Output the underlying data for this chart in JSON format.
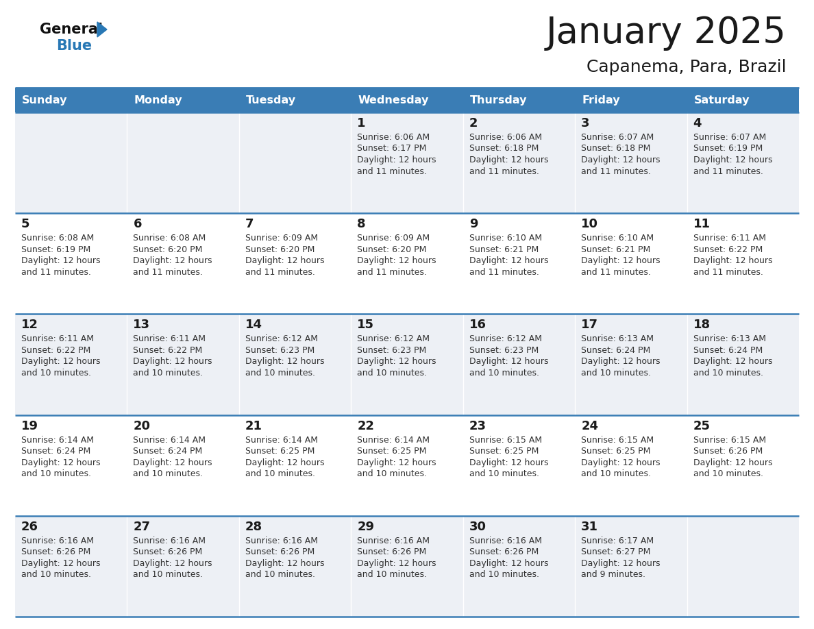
{
  "title": "January 2025",
  "subtitle": "Capanema, Para, Brazil",
  "days_of_week": [
    "Sunday",
    "Monday",
    "Tuesday",
    "Wednesday",
    "Thursday",
    "Friday",
    "Saturday"
  ],
  "header_bg": "#3a7db5",
  "header_text": "#ffffff",
  "cell_bg_light": "#edf0f5",
  "cell_bg_white": "#ffffff",
  "line_color": "#3a7db5",
  "title_color": "#1a1a1a",
  "text_color": "#333333",
  "day_num_color": "#1a1a1a",
  "logo_general_color": "#111111",
  "logo_blue_color": "#2878b5",
  "weeks": [
    {
      "days": [
        {
          "day": null,
          "sunrise": null,
          "sunset": null,
          "daylight_suffix": null
        },
        {
          "day": null,
          "sunrise": null,
          "sunset": null,
          "daylight_suffix": null
        },
        {
          "day": null,
          "sunrise": null,
          "sunset": null,
          "daylight_suffix": null
        },
        {
          "day": 1,
          "sunrise": "6:06 AM",
          "sunset": "6:17 PM",
          "daylight_suffix": "11 minutes."
        },
        {
          "day": 2,
          "sunrise": "6:06 AM",
          "sunset": "6:18 PM",
          "daylight_suffix": "11 minutes."
        },
        {
          "day": 3,
          "sunrise": "6:07 AM",
          "sunset": "6:18 PM",
          "daylight_suffix": "11 minutes."
        },
        {
          "day": 4,
          "sunrise": "6:07 AM",
          "sunset": "6:19 PM",
          "daylight_suffix": "11 minutes."
        }
      ]
    },
    {
      "days": [
        {
          "day": 5,
          "sunrise": "6:08 AM",
          "sunset": "6:19 PM",
          "daylight_suffix": "11 minutes."
        },
        {
          "day": 6,
          "sunrise": "6:08 AM",
          "sunset": "6:20 PM",
          "daylight_suffix": "11 minutes."
        },
        {
          "day": 7,
          "sunrise": "6:09 AM",
          "sunset": "6:20 PM",
          "daylight_suffix": "11 minutes."
        },
        {
          "day": 8,
          "sunrise": "6:09 AM",
          "sunset": "6:20 PM",
          "daylight_suffix": "11 minutes."
        },
        {
          "day": 9,
          "sunrise": "6:10 AM",
          "sunset": "6:21 PM",
          "daylight_suffix": "11 minutes."
        },
        {
          "day": 10,
          "sunrise": "6:10 AM",
          "sunset": "6:21 PM",
          "daylight_suffix": "11 minutes."
        },
        {
          "day": 11,
          "sunrise": "6:11 AM",
          "sunset": "6:22 PM",
          "daylight_suffix": "11 minutes."
        }
      ]
    },
    {
      "days": [
        {
          "day": 12,
          "sunrise": "6:11 AM",
          "sunset": "6:22 PM",
          "daylight_suffix": "10 minutes."
        },
        {
          "day": 13,
          "sunrise": "6:11 AM",
          "sunset": "6:22 PM",
          "daylight_suffix": "10 minutes."
        },
        {
          "day": 14,
          "sunrise": "6:12 AM",
          "sunset": "6:23 PM",
          "daylight_suffix": "10 minutes."
        },
        {
          "day": 15,
          "sunrise": "6:12 AM",
          "sunset": "6:23 PM",
          "daylight_suffix": "10 minutes."
        },
        {
          "day": 16,
          "sunrise": "6:12 AM",
          "sunset": "6:23 PM",
          "daylight_suffix": "10 minutes."
        },
        {
          "day": 17,
          "sunrise": "6:13 AM",
          "sunset": "6:24 PM",
          "daylight_suffix": "10 minutes."
        },
        {
          "day": 18,
          "sunrise": "6:13 AM",
          "sunset": "6:24 PM",
          "daylight_suffix": "10 minutes."
        }
      ]
    },
    {
      "days": [
        {
          "day": 19,
          "sunrise": "6:14 AM",
          "sunset": "6:24 PM",
          "daylight_suffix": "10 minutes."
        },
        {
          "day": 20,
          "sunrise": "6:14 AM",
          "sunset": "6:24 PM",
          "daylight_suffix": "10 minutes."
        },
        {
          "day": 21,
          "sunrise": "6:14 AM",
          "sunset": "6:25 PM",
          "daylight_suffix": "10 minutes."
        },
        {
          "day": 22,
          "sunrise": "6:14 AM",
          "sunset": "6:25 PM",
          "daylight_suffix": "10 minutes."
        },
        {
          "day": 23,
          "sunrise": "6:15 AM",
          "sunset": "6:25 PM",
          "daylight_suffix": "10 minutes."
        },
        {
          "day": 24,
          "sunrise": "6:15 AM",
          "sunset": "6:25 PM",
          "daylight_suffix": "10 minutes."
        },
        {
          "day": 25,
          "sunrise": "6:15 AM",
          "sunset": "6:26 PM",
          "daylight_suffix": "10 minutes."
        }
      ]
    },
    {
      "days": [
        {
          "day": 26,
          "sunrise": "6:16 AM",
          "sunset": "6:26 PM",
          "daylight_suffix": "10 minutes."
        },
        {
          "day": 27,
          "sunrise": "6:16 AM",
          "sunset": "6:26 PM",
          "daylight_suffix": "10 minutes."
        },
        {
          "day": 28,
          "sunrise": "6:16 AM",
          "sunset": "6:26 PM",
          "daylight_suffix": "10 minutes."
        },
        {
          "day": 29,
          "sunrise": "6:16 AM",
          "sunset": "6:26 PM",
          "daylight_suffix": "10 minutes."
        },
        {
          "day": 30,
          "sunrise": "6:16 AM",
          "sunset": "6:26 PM",
          "daylight_suffix": "10 minutes."
        },
        {
          "day": 31,
          "sunrise": "6:17 AM",
          "sunset": "6:27 PM",
          "daylight_suffix": "9 minutes."
        },
        {
          "day": null,
          "sunrise": null,
          "sunset": null,
          "daylight_suffix": null
        }
      ]
    }
  ]
}
